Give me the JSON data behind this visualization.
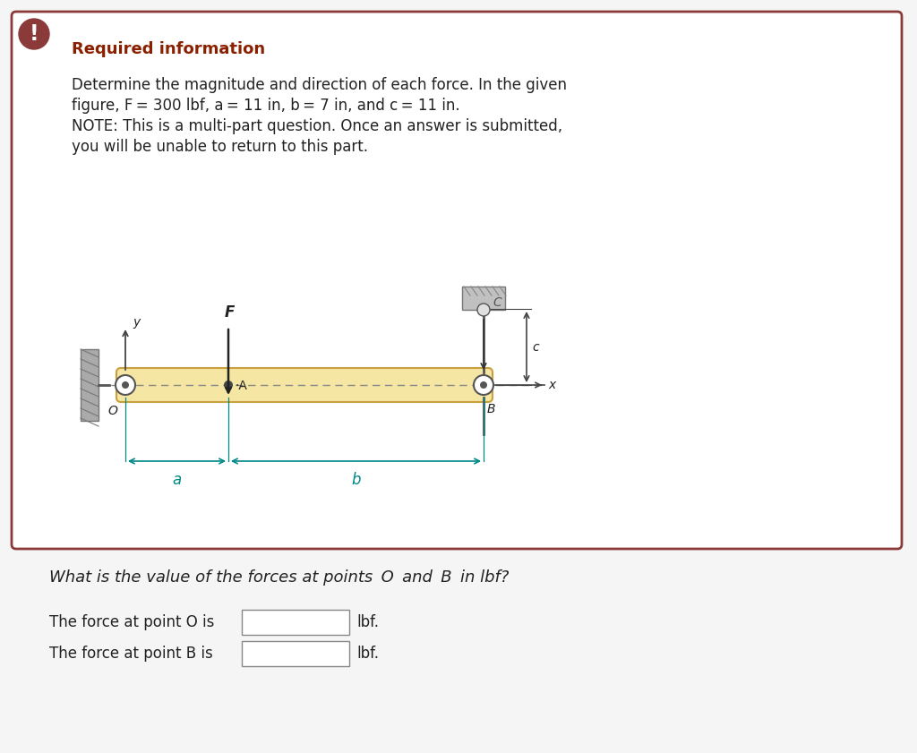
{
  "bg_color": "#f5f5f5",
  "card_bg": "#ffffff",
  "card_border": "#8B3A3A",
  "warning_icon_bg": "#8B3A3A",
  "title_color": "#8B2000",
  "title_text": "Required information",
  "body_line1": "Determine the magnitude and direction of each force. In the given",
  "body_line2": "figure, F = 300 lbf, a = 11 in, b = 7 in, and c = 11 in.",
  "body_line3": "NOTE: This is a multi-part question. Once an answer is submitted,",
  "body_line4": "you will be unable to return to this part.",
  "bottom_q": "What is the value of the forces at points  O  and  B  in lbf?",
  "bottom_o": "The force at point O is",
  "bottom_b": "The force at point B is",
  "lbf_suffix": "lbf.",
  "rod_fill": "#F5E6A3",
  "rod_edge": "#C8A040",
  "wall_fill": "#AAAAAA",
  "wall_edge": "#777777",
  "dim_color": "#008888",
  "axis_color": "#444444",
  "text_dark": "#222222",
  "gray_mid": "#999999"
}
